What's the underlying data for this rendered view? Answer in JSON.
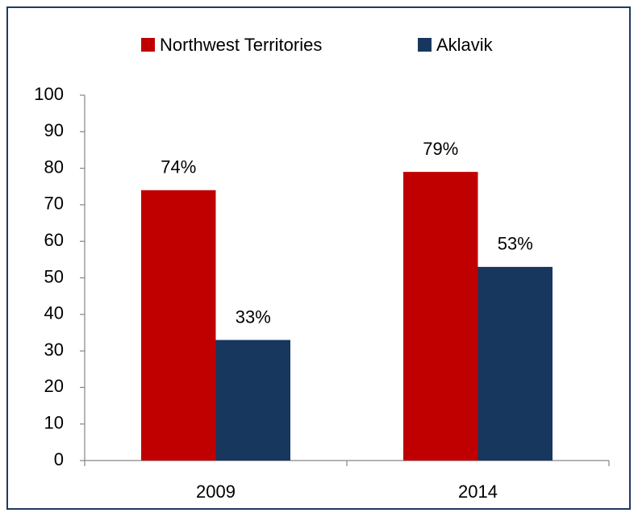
{
  "chart_data": {
    "type": "bar",
    "categories": [
      "2009",
      "2014"
    ],
    "series": [
      {
        "name": "Northwest Territories",
        "color": "#c00000",
        "values": [
          74,
          79
        ],
        "value_labels": [
          "74%",
          "79%"
        ]
      },
      {
        "name": "Aklavik",
        "color": "#17375e",
        "values": [
          33,
          53
        ],
        "value_labels": [
          "33%",
          "53%"
        ]
      }
    ],
    "ylim": [
      0,
      100
    ],
    "yticks": [
      0,
      10,
      20,
      30,
      40,
      50,
      60,
      70,
      80,
      90,
      100
    ],
    "grid": false,
    "legend": "top"
  }
}
